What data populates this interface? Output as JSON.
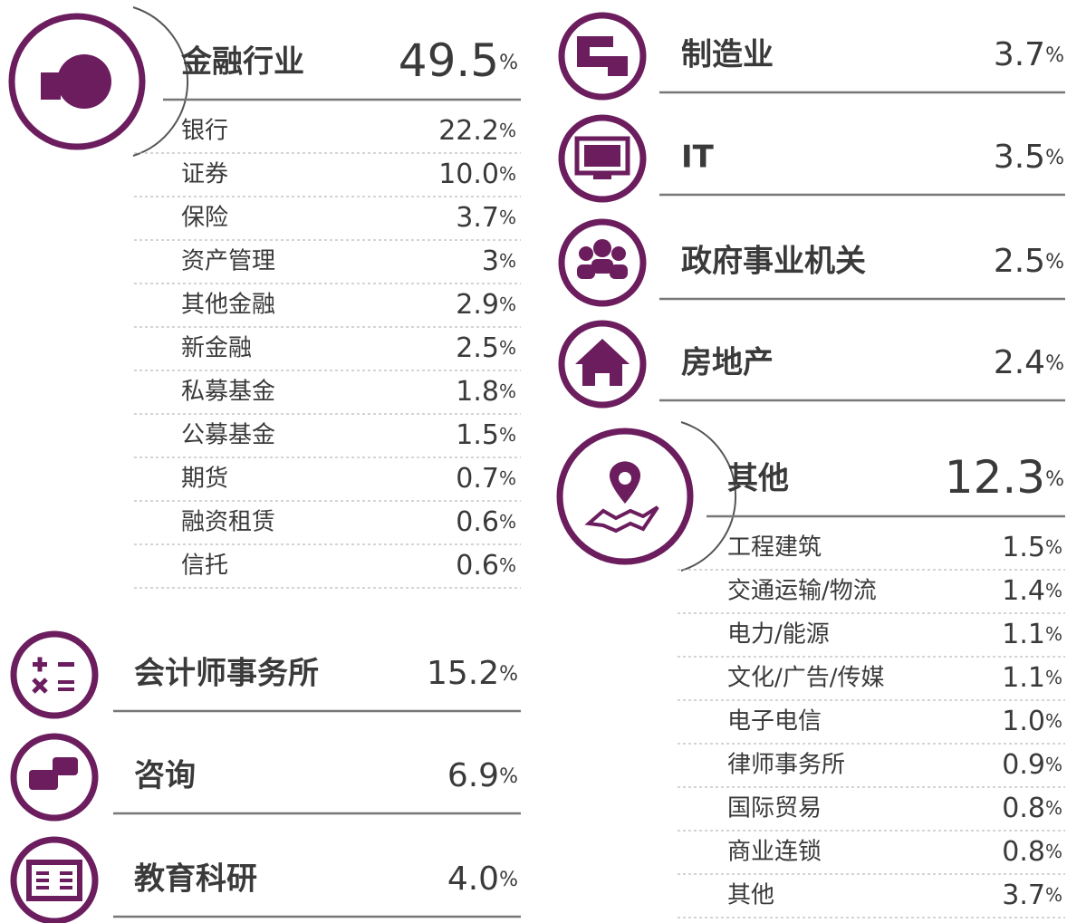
{
  "sections": [
    {
      "label": "金融行业",
      "value": "49.5",
      "unit": "%",
      "items": [
        {
          "label": "银行",
          "value": "22.2",
          "unit": "%"
        },
        {
          "label": "证券",
          "value": "10.0",
          "unit": "%"
        },
        {
          "label": "保险",
          "value": "3.7",
          "unit": "%"
        },
        {
          "label": "资产管理",
          "value": "3",
          "unit": "%"
        },
        {
          "label": "其他金融",
          "value": "2.9",
          "unit": "%"
        },
        {
          "label": "新金融",
          "value": "2.5",
          "unit": "%"
        },
        {
          "label": "私募基金",
          "value": "1.8",
          "unit": "%"
        },
        {
          "label": "公募基金",
          "value": "1.5",
          "unit": "%"
        },
        {
          "label": "期货",
          "value": "0.7",
          "unit": "%"
        },
        {
          "label": "融资租赁",
          "value": "0.6",
          "unit": "%"
        },
        {
          "label": "信托",
          "value": "0.6",
          "unit": "%"
        }
      ]
    },
    {
      "label": "会计师事务所",
      "value": "15.2",
      "unit": "%"
    },
    {
      "label": "咨询",
      "value": "6.9",
      "unit": "%"
    },
    {
      "label": "教育科研",
      "value": "4.0",
      "unit": "%"
    },
    {
      "label": "制造业",
      "value": "3.7",
      "unit": "%"
    },
    {
      "label": "IT",
      "value": "3.5",
      "unit": "%"
    },
    {
      "label": "政府事业机关",
      "value": "2.5",
      "unit": "%"
    },
    {
      "label": "房地产",
      "value": "2.4",
      "unit": "%"
    },
    {
      "label": "其他",
      "value": "12.3",
      "unit": "%",
      "items": [
        {
          "label": "工程建筑",
          "value": "1.5",
          "unit": "%"
        },
        {
          "label": "交通运输/物流",
          "value": "1.4",
          "unit": "%"
        },
        {
          "label": "电力/能源",
          "value": "1.1",
          "unit": "%"
        },
        {
          "label": "文化/广告/传媒",
          "value": "1.1",
          "unit": "%"
        },
        {
          "label": "电子电信",
          "value": "1.0",
          "unit": "%"
        },
        {
          "label": "律师事务所",
          "value": "0.9",
          "unit": "%"
        },
        {
          "label": "国际贸易",
          "value": "0.8",
          "unit": "%"
        },
        {
          "label": "商业连锁",
          "value": "0.8",
          "unit": "%"
        },
        {
          "label": "其他",
          "value": "3.7",
          "unit": "%"
        }
      ]
    }
  ]
}
